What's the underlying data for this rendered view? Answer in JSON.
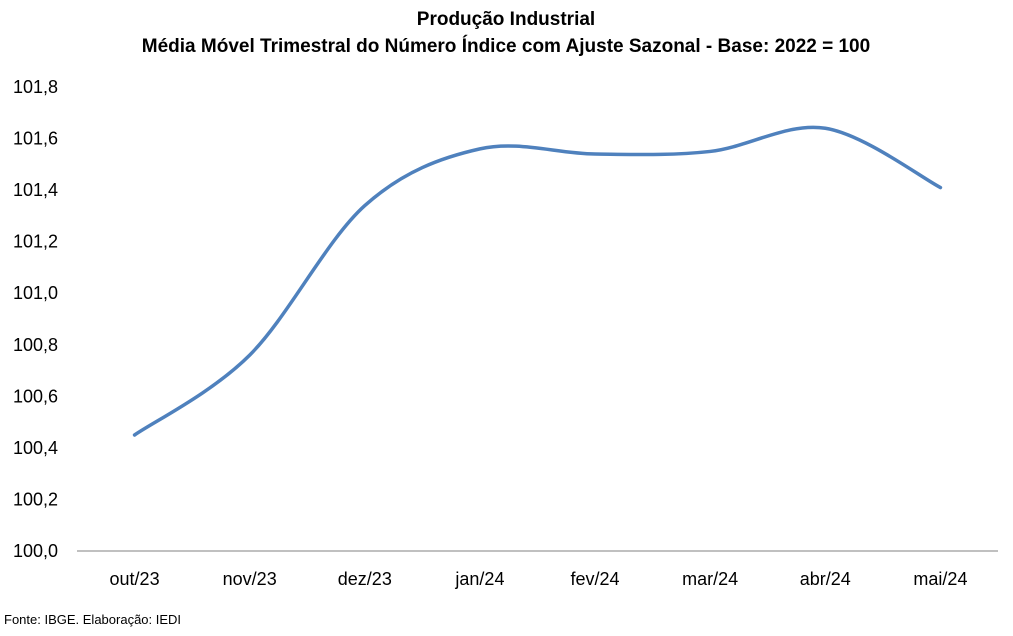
{
  "chart_data": {
    "type": "line",
    "title": "Produção Industrial",
    "subtitle": "Média Móvel Trimestral do Número Índice com Ajuste Sazonal - Base: 2022 = 100",
    "xlabel": "",
    "ylabel": "",
    "categories": [
      "out/23",
      "nov/23",
      "dez/23",
      "jan/24",
      "fev/24",
      "mar/24",
      "abr/24",
      "mai/24"
    ],
    "series": [
      {
        "values": [
          100.45,
          100.76,
          101.34,
          101.56,
          101.54,
          101.55,
          101.64,
          101.41
        ],
        "color": "#4F81BD"
      }
    ],
    "ylim": [
      100.0,
      101.8
    ],
    "yticks": [
      "100,0",
      "100,2",
      "100,4",
      "100,6",
      "100,8",
      "101,0",
      "101,2",
      "101,4",
      "101,6",
      "101,8"
    ],
    "ytick_values": [
      100.0,
      100.2,
      100.4,
      100.6,
      100.8,
      101.0,
      101.2,
      101.4,
      101.6,
      101.8
    ],
    "grid": false,
    "legend": "none",
    "smooth": true
  },
  "source": "Fonte: IBGE. Elaboração: IEDI"
}
